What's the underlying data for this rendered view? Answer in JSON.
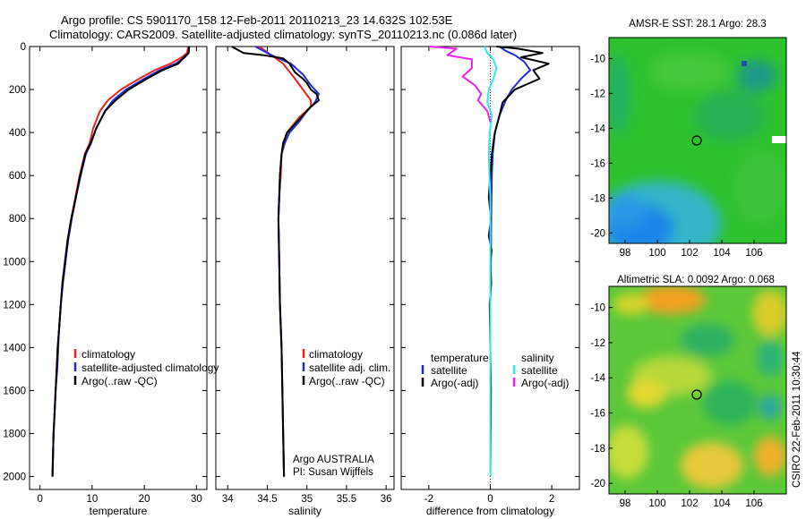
{
  "titles": {
    "line1": "Argo profile: CS 5901170_158 12-Feb-2011 20110213_23 14.632S 102.53E",
    "line2": "Climatology: CARS2009. Satellite-adjusted climatology: synTS_20110213.nc (0.086d later)"
  },
  "credit": "CSIRO 22-Feb-2011 10:30:44",
  "colors": {
    "climatology": "#e8261f",
    "satellite": "#1f2bd6",
    "argo": "#000000",
    "sat_diff_sal": "#33e8ee",
    "argo_diff_sal": "#ee22ee"
  },
  "chart_data": [
    {
      "type": "line",
      "xlabel": "temperature",
      "ylabel": "",
      "xlim": [
        -2,
        32
      ],
      "ylim": [
        2060,
        0
      ],
      "xticks": [
        "0",
        "10",
        "20",
        "30"
      ],
      "yticks": [
        "0",
        "200",
        "400",
        "600",
        "800",
        "1000",
        "1200",
        "1400",
        "1600",
        "1800",
        "2000"
      ],
      "legend": [
        "climatology",
        "satellite-adjusted climatology",
        "Argo(..raw -QC)"
      ],
      "series": [
        {
          "name": "climatology",
          "color": "#e8261f",
          "points": [
            [
              28.4,
              0
            ],
            [
              28.2,
              30
            ],
            [
              27.2,
              50
            ],
            [
              25,
              80
            ],
            [
              22,
              110
            ],
            [
              19,
              150
            ],
            [
              15.5,
              200
            ],
            [
              13,
              250
            ],
            [
              11.5,
              300
            ],
            [
              10.2,
              380
            ],
            [
              9.5,
              450
            ],
            [
              8.6,
              500
            ],
            [
              7.6,
              600
            ],
            [
              6.8,
              700
            ],
            [
              6,
              800
            ],
            [
              5.3,
              900
            ],
            [
              4.8,
              1000
            ],
            [
              4.3,
              1100
            ],
            [
              4,
              1200
            ],
            [
              3.7,
              1300
            ],
            [
              3.4,
              1400
            ],
            [
              3.2,
              1500
            ],
            [
              3,
              1600
            ],
            [
              2.8,
              1700
            ],
            [
              2.6,
              1800
            ],
            [
              2.5,
              1900
            ],
            [
              2.4,
              2000
            ]
          ]
        },
        {
          "name": "satellite-adjusted climatology",
          "color": "#1f2bd6",
          "points": [
            [
              28.6,
              0
            ],
            [
              28.5,
              30
            ],
            [
              27.8,
              50
            ],
            [
              26,
              80
            ],
            [
              23,
              110
            ],
            [
              20,
              150
            ],
            [
              16.5,
              200
            ],
            [
              14,
              250
            ],
            [
              12.5,
              300
            ],
            [
              10.8,
              380
            ],
            [
              9.8,
              450
            ],
            [
              8.8,
              500
            ],
            [
              7.8,
              600
            ],
            [
              6.9,
              700
            ],
            [
              6.1,
              800
            ],
            [
              5.4,
              900
            ],
            [
              4.9,
              1000
            ],
            [
              4.4,
              1100
            ],
            [
              4,
              1200
            ],
            [
              3.7,
              1300
            ],
            [
              3.5,
              1400
            ],
            [
              3.3,
              1500
            ],
            [
              3,
              1600
            ],
            [
              2.8,
              1700
            ],
            [
              2.6,
              1800
            ],
            [
              2.5,
              1900
            ],
            [
              2.4,
              2000
            ]
          ]
        },
        {
          "name": "Argo(..raw -QC)",
          "color": "#000000",
          "points": [
            [
              28.6,
              0
            ],
            [
              28.5,
              30
            ],
            [
              27.6,
              50
            ],
            [
              26.5,
              80
            ],
            [
              23.5,
              110
            ],
            [
              20.5,
              150
            ],
            [
              17,
              200
            ],
            [
              14.5,
              250
            ],
            [
              12.5,
              300
            ],
            [
              10.8,
              380
            ],
            [
              9.7,
              450
            ],
            [
              8.7,
              500
            ],
            [
              7.7,
              600
            ],
            [
              6.9,
              700
            ],
            [
              6,
              800
            ],
            [
              5.3,
              900
            ],
            [
              4.8,
              1000
            ],
            [
              4.3,
              1100
            ],
            [
              4,
              1200
            ],
            [
              3.7,
              1300
            ],
            [
              3.4,
              1400
            ],
            [
              3.2,
              1500
            ],
            [
              3,
              1600
            ],
            [
              2.8,
              1700
            ],
            [
              2.6,
              1800
            ],
            [
              2.5,
              1900
            ],
            [
              2.4,
              2000
            ]
          ]
        }
      ]
    },
    {
      "type": "line",
      "xlabel": "salinity",
      "xlim": [
        33.85,
        36.1
      ],
      "ylim": [
        2060,
        0
      ],
      "xticks": [
        "34",
        "34.5",
        "35",
        "35.5",
        "36"
      ],
      "legend": [
        "climatology",
        "satellite adj. clim.",
        "Argo(..raw -QC)"
      ],
      "annotation": [
        "Argo AUSTRALIA",
        "PI: Susan Wijffels"
      ],
      "series": [
        {
          "name": "climatology",
          "color": "#e8261f",
          "points": [
            [
              34.4,
              0
            ],
            [
              34.55,
              40
            ],
            [
              34.7,
              80
            ],
            [
              34.85,
              150
            ],
            [
              35.05,
              250
            ],
            [
              35.05,
              280
            ],
            [
              34.9,
              330
            ],
            [
              34.75,
              400
            ],
            [
              34.7,
              450
            ],
            [
              34.68,
              500
            ],
            [
              34.67,
              600
            ],
            [
              34.65,
              700
            ],
            [
              34.64,
              800
            ],
            [
              34.65,
              1000
            ],
            [
              34.66,
              1200
            ],
            [
              34.68,
              1400
            ],
            [
              34.69,
              1600
            ],
            [
              34.7,
              1800
            ],
            [
              34.71,
              2000
            ]
          ]
        },
        {
          "name": "satellite adj. clim.",
          "color": "#1f2bd6",
          "points": [
            [
              34.35,
              0
            ],
            [
              34.55,
              40
            ],
            [
              34.8,
              80
            ],
            [
              34.95,
              130
            ],
            [
              35.05,
              180
            ],
            [
              35.15,
              220
            ],
            [
              35.1,
              260
            ],
            [
              35.0,
              300
            ],
            [
              34.9,
              350
            ],
            [
              34.78,
              400
            ],
            [
              34.72,
              450
            ],
            [
              34.68,
              500
            ],
            [
              34.66,
              600
            ],
            [
              34.65,
              700
            ],
            [
              34.64,
              800
            ],
            [
              34.65,
              1000
            ],
            [
              34.66,
              1200
            ],
            [
              34.68,
              1400
            ],
            [
              34.69,
              1600
            ],
            [
              34.7,
              1800
            ],
            [
              34.71,
              2000
            ]
          ]
        },
        {
          "name": "Argo(..raw -QC)",
          "color": "#000000",
          "points": [
            [
              34.05,
              0
            ],
            [
              34.2,
              30
            ],
            [
              34.45,
              40
            ],
            [
              34.7,
              55
            ],
            [
              34.78,
              80
            ],
            [
              34.85,
              120
            ],
            [
              34.95,
              150
            ],
            [
              35.0,
              170
            ],
            [
              35.05,
              200
            ],
            [
              35.12,
              220
            ],
            [
              35.15,
              250
            ],
            [
              35.05,
              280
            ],
            [
              34.95,
              320
            ],
            [
              34.85,
              360
            ],
            [
              34.75,
              400
            ],
            [
              34.7,
              450
            ],
            [
              34.68,
              500
            ],
            [
              34.66,
              600
            ],
            [
              34.65,
              700
            ],
            [
              34.64,
              800
            ],
            [
              34.65,
              1000
            ],
            [
              34.66,
              1200
            ],
            [
              34.68,
              1400
            ],
            [
              34.69,
              1600
            ],
            [
              34.7,
              1800
            ],
            [
              34.71,
              2000
            ]
          ]
        }
      ]
    },
    {
      "type": "line",
      "xlabel": "difference from climatology",
      "xlim": [
        -2.9,
        2.9
      ],
      "ylim": [
        2060,
        0
      ],
      "xticks": [
        "-2",
        "0",
        "2"
      ],
      "legend_temperature": [
        "temperature",
        "satellite",
        "Argo(-adj)"
      ],
      "legend_salinity": [
        "salinity",
        "satellite",
        "Argo(-adj)"
      ],
      "series": [
        {
          "name": "satellite",
          "group": "temperature",
          "color": "#1f2bd6",
          "points": [
            [
              0.3,
              0
            ],
            [
              0.5,
              20
            ],
            [
              0.8,
              40
            ],
            [
              1.1,
              70
            ],
            [
              1.3,
              110
            ],
            [
              1.0,
              150
            ],
            [
              0.7,
              200
            ],
            [
              0.5,
              250
            ],
            [
              0.3,
              320
            ],
            [
              0.15,
              400
            ],
            [
              0.08,
              500
            ],
            [
              0.05,
              600
            ],
            [
              0.03,
              800
            ],
            [
              0.02,
              1000
            ],
            [
              0,
              1200
            ],
            [
              0,
              1600
            ],
            [
              0,
              2000
            ]
          ]
        },
        {
          "name": "Argo(-adj)",
          "group": "temperature",
          "color": "#000000",
          "points": [
            [
              0.2,
              0
            ],
            [
              0.9,
              10
            ],
            [
              1.7,
              30
            ],
            [
              1.0,
              50
            ],
            [
              1.9,
              80
            ],
            [
              1.4,
              110
            ],
            [
              1.6,
              150
            ],
            [
              0.8,
              200
            ],
            [
              0.4,
              260
            ],
            [
              0.3,
              320
            ],
            [
              0.15,
              400
            ],
            [
              0.05,
              500
            ],
            [
              0,
              600
            ],
            [
              -0.05,
              700
            ],
            [
              0.02,
              800
            ],
            [
              -0.05,
              880
            ],
            [
              0.04,
              950
            ],
            [
              0,
              1000
            ],
            [
              0.03,
              1100
            ],
            [
              -0.02,
              1200
            ],
            [
              0,
              1400
            ],
            [
              0.02,
              1600
            ],
            [
              0,
              2000
            ]
          ]
        },
        {
          "name": "satellite",
          "group": "salinity",
          "color": "#33e8ee",
          "points": [
            [
              -0.2,
              0
            ],
            [
              -0.1,
              30
            ],
            [
              0.1,
              60
            ],
            [
              0.2,
              100
            ],
            [
              0.1,
              150
            ],
            [
              -0.05,
              200
            ],
            [
              -0.1,
              260
            ],
            [
              0.05,
              320
            ],
            [
              -0.02,
              400
            ],
            [
              -0.05,
              500
            ],
            [
              -0.03,
              600
            ],
            [
              0,
              700
            ],
            [
              0,
              1000
            ],
            [
              0,
              1400
            ],
            [
              0,
              2000
            ]
          ]
        },
        {
          "name": "Argo(-adj)",
          "group": "salinity",
          "color": "#ee22ee",
          "points": [
            [
              -2.0,
              0
            ],
            [
              -1.1,
              10
            ],
            [
              -1.4,
              40
            ],
            [
              -0.6,
              60
            ],
            [
              -0.6,
              100
            ],
            [
              -0.9,
              140
            ],
            [
              -0.5,
              180
            ],
            [
              -0.3,
              220
            ],
            [
              -0.4,
              250
            ],
            [
              -0.1,
              300
            ],
            [
              0,
              350
            ]
          ]
        }
      ]
    },
    {
      "type": "heatmap",
      "title": "AMSR-E SST: 28.1  Argo: 28.3",
      "xlim": [
        97,
        108
      ],
      "ylim": [
        -20.6,
        -8.8
      ],
      "xticks": [
        "98",
        "100",
        "102",
        "104",
        "106"
      ],
      "yticks": [
        "-10",
        "-12",
        "-14",
        "-16",
        "-18",
        "-20"
      ],
      "marker": [
        102.53,
        -14.632
      ]
    },
    {
      "type": "heatmap",
      "title": "Altimetric SLA: 0.0092  Argo: 0.068",
      "xlim": [
        97,
        108
      ],
      "ylim": [
        -20.6,
        -8.8
      ],
      "xticks": [
        "98",
        "100",
        "102",
        "104",
        "106"
      ],
      "yticks": [
        "-10",
        "-12",
        "-14",
        "-16",
        "-18",
        "-20"
      ],
      "marker": [
        102.53,
        -14.632
      ]
    }
  ]
}
